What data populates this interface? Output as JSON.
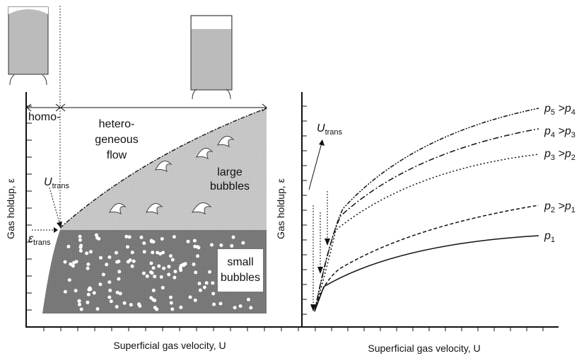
{
  "left": {
    "homo": "homo-",
    "hetero": [
      "hetero-",
      "geneous",
      "flow"
    ],
    "u_trans": {
      "main": "U",
      "sub": "trans"
    },
    "eps_trans": {
      "main": "ε",
      "sub": "trans"
    },
    "large": [
      "large",
      "bubbles"
    ],
    "small": [
      "small",
      "bubbles"
    ],
    "y_label": "Gas holdup, ε",
    "x_label": "Superficial gas velocity, U"
  },
  "right": {
    "u_trans": {
      "main": "U",
      "sub": "trans"
    },
    "curves": [
      {
        "main": "p",
        "sub": "5",
        "rel": " >p",
        "sub2": "4"
      },
      {
        "main": "p",
        "sub": "4",
        "rel": " >p",
        "sub2": "3"
      },
      {
        "main": "p",
        "sub": "3",
        "rel": " >p",
        "sub2": "2"
      },
      {
        "main": "p",
        "sub": "2",
        "rel": " >p",
        "sub2": "1"
      },
      {
        "main": "p",
        "sub": "1"
      }
    ],
    "y_label": "Gas holdup, ε",
    "x_label": "Superficial gas velocity, U"
  }
}
